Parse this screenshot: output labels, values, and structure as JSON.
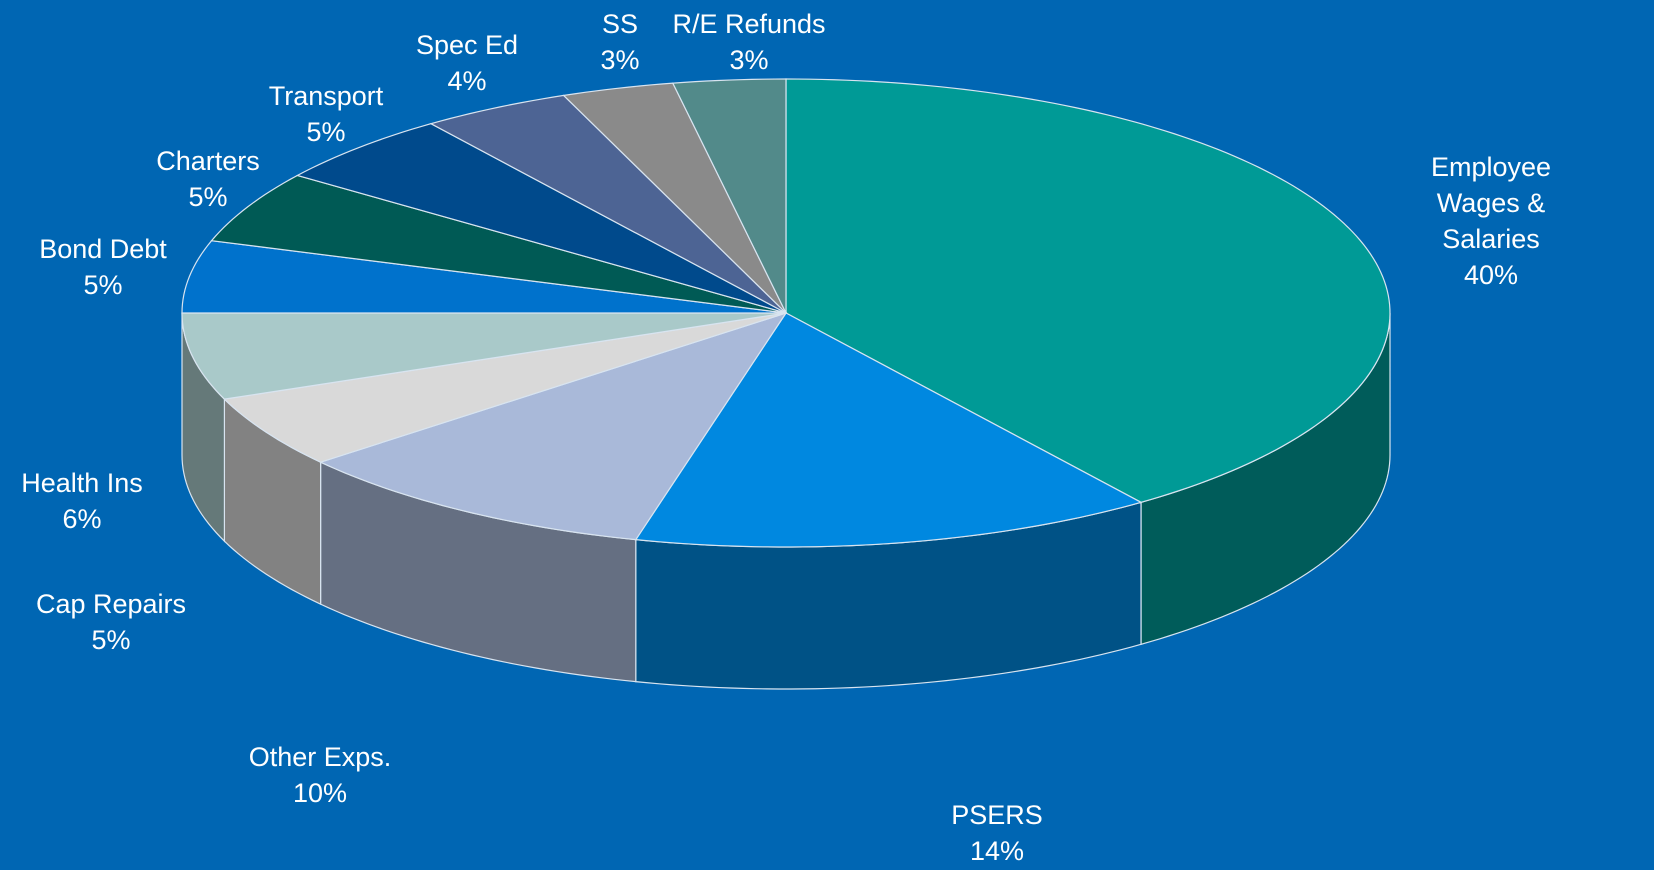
{
  "chart_data": {
    "type": "pie3d",
    "categories": [
      "Employee Wages & Salaries",
      "PSERS",
      "Other Exps.",
      "Cap Repairs",
      "Health Ins",
      "Bond Debt",
      "Charters",
      "Transport",
      "Spec Ed",
      "SS",
      "R/E Refunds"
    ],
    "values": [
      40,
      14,
      10,
      5,
      6,
      5,
      5,
      5,
      4,
      3,
      3
    ],
    "value_labels": [
      "40%",
      "14%",
      "10%",
      "5%",
      "6%",
      "5%",
      "5%",
      "5%",
      "4%",
      "3%",
      "3%"
    ],
    "colors": [
      "#009a96",
      "#0088e0",
      "#a9b9d9",
      "#d9d9d9",
      "#a9c9c9",
      "#0072cc",
      "#005a55",
      "#004a8c",
      "#4d6494",
      "#8a8a8a",
      "#528a8a"
    ]
  }
}
